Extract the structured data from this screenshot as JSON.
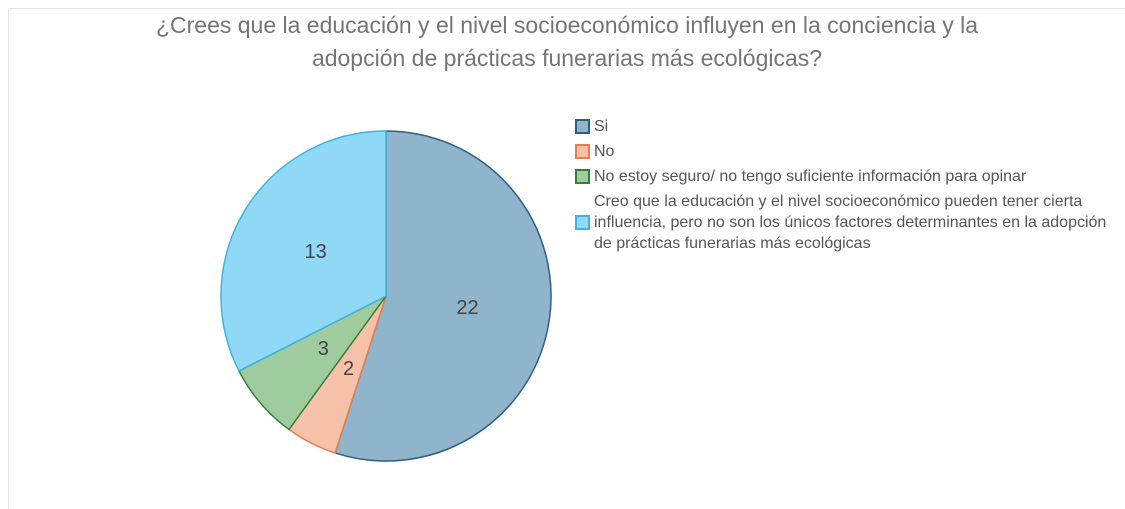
{
  "chart_data": {
    "type": "pie",
    "title": "¿Crees que la educación y el nivel socioeconómico influyen en la conciencia y la adopción de prácticas funerarias más ecológicas?",
    "categories": [
      "Si",
      "No",
      "No estoy seguro/ no tengo suficiente información para opinar",
      "Creo que la educación y el nivel socioeconómico pueden tener cierta influencia, pero no son los únicos factores determinantes en la adopción de prácticas funerarias más ecológicas"
    ],
    "values": [
      22,
      2,
      3,
      13
    ],
    "colors": [
      "#8fb4cb",
      "#f7c1a9",
      "#9fcc9f",
      "#8fd9f6"
    ],
    "stroke_colors": [
      "#2e5f80",
      "#e3804f",
      "#3b7b3b",
      "#3fb3e3"
    ],
    "legend": "right"
  }
}
